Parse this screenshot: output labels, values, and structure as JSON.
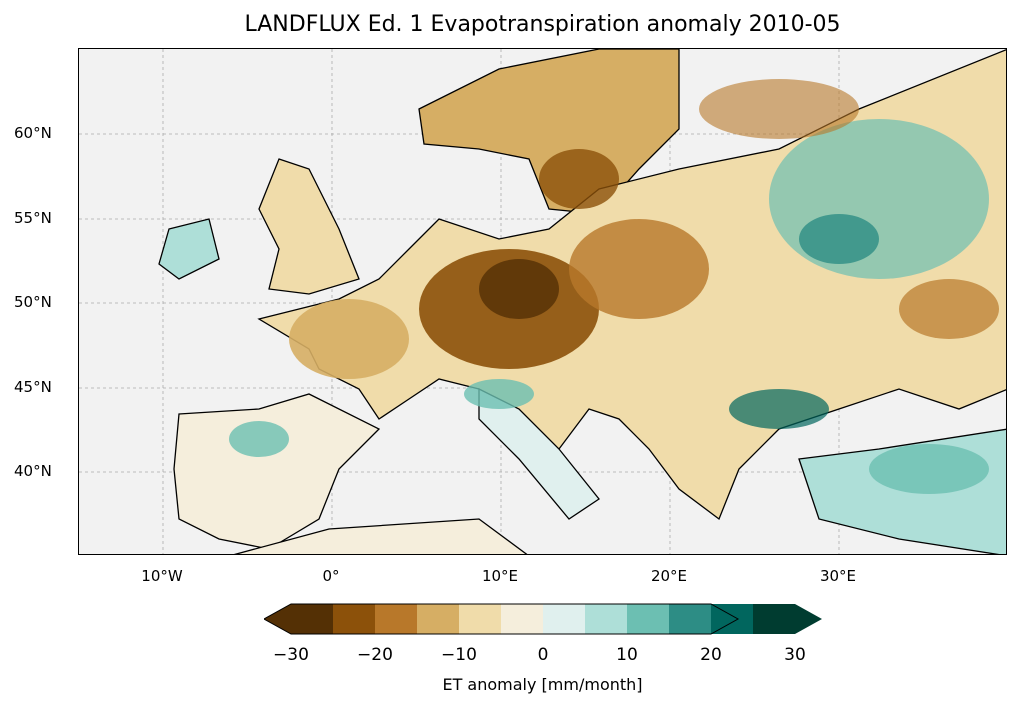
{
  "title": "LANDFLUX Ed. 1 Evapotranspiration anomaly 2010-05",
  "lon_labels": [
    "10°W",
    "0°",
    "10°E",
    "20°E",
    "30°E"
  ],
  "lat_labels": [
    "60°N",
    "55°N",
    "50°N",
    "45°N",
    "40°N"
  ],
  "colorbar": {
    "label": "ET anomaly [mm/month]",
    "ticks": [
      "−30",
      "−20",
      "−10",
      "0",
      "10",
      "20",
      "30"
    ],
    "colors": [
      "#543005",
      "#8c510a",
      "#b8782a",
      "#d6ae64",
      "#f0dcaa",
      "#f5eedc",
      "#e0f0ee",
      "#aedfd8",
      "#6cbfb2",
      "#2d8d85",
      "#01665e",
      "#003c30"
    ]
  },
  "colors": {
    "ocean": "#f2f2f2",
    "dry": "#8c510a",
    "wet": "#2d8d85"
  }
}
